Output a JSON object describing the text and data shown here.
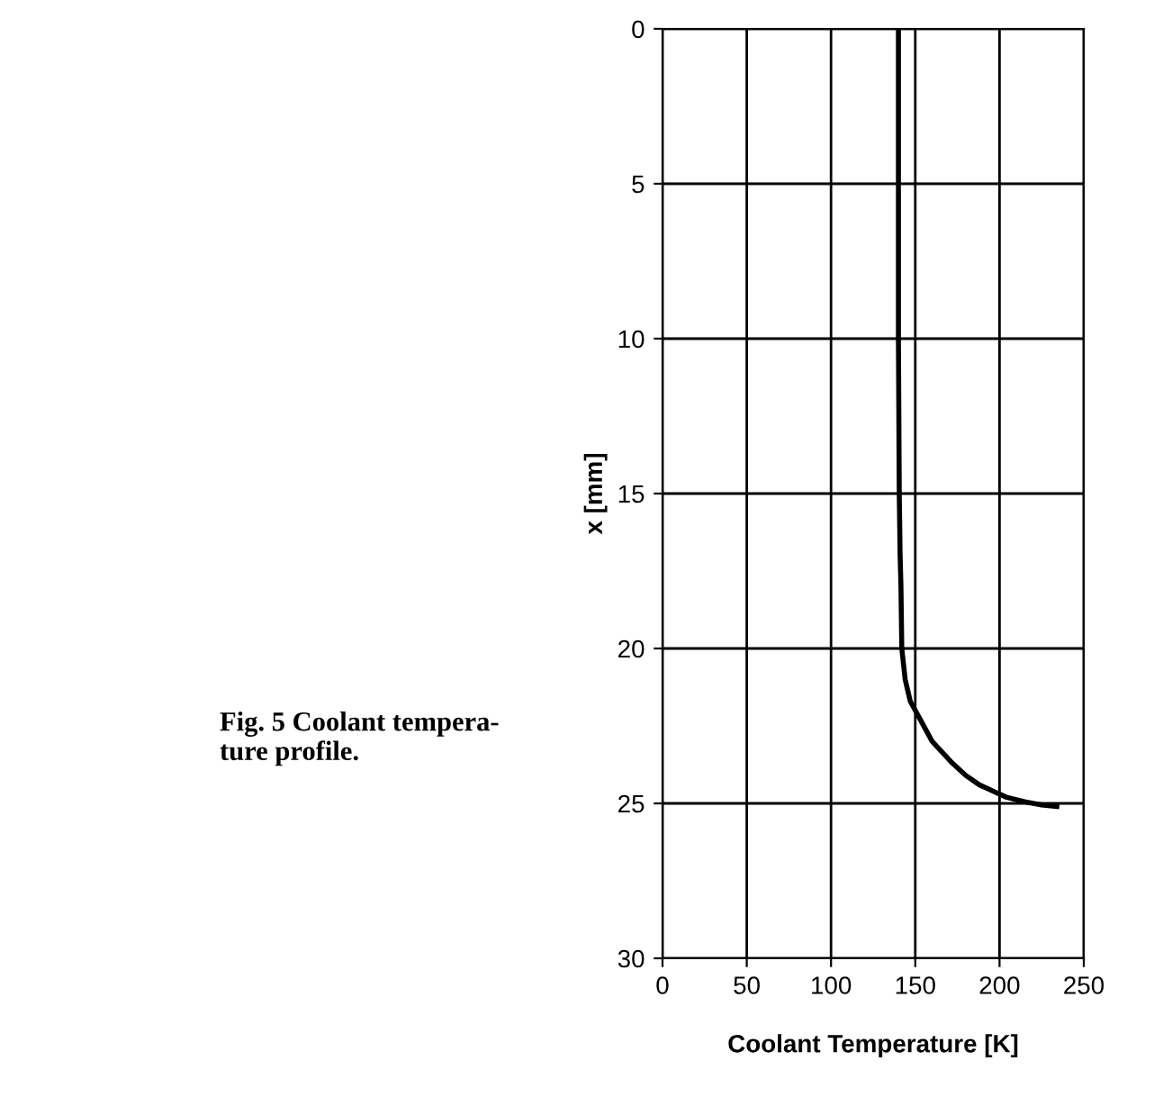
{
  "chart_data": {
    "type": "line",
    "xlabel": "Coolant Temperature [K]",
    "ylabel": "x [mm]",
    "annotations": [
      "Fig. 5 Coolant tempera-\nture profile."
    ],
    "series": [
      {
        "color": "#000000",
        "x": [
          140,
          140,
          140,
          140.5,
          141,
          141.5,
          142,
          144,
          147,
          152,
          160,
          172,
          180,
          188,
          196,
          204,
          215,
          225,
          234
        ],
        "values": [
          0,
          5,
          10,
          15,
          17,
          18,
          20,
          21,
          21.7,
          22.2,
          23,
          23.7,
          24.1,
          24.4,
          24.6,
          24.8,
          24.95,
          25.05,
          25.1
        ]
      }
    ],
    "xlim": [
      0,
      250
    ],
    "xticks": [
      0,
      50,
      100,
      150,
      200,
      250
    ],
    "ylim": [
      30,
      0
    ],
    "yticks": [
      0,
      5,
      10,
      15,
      20,
      25,
      30
    ],
    "grid": true,
    "line_style": "solid"
  }
}
